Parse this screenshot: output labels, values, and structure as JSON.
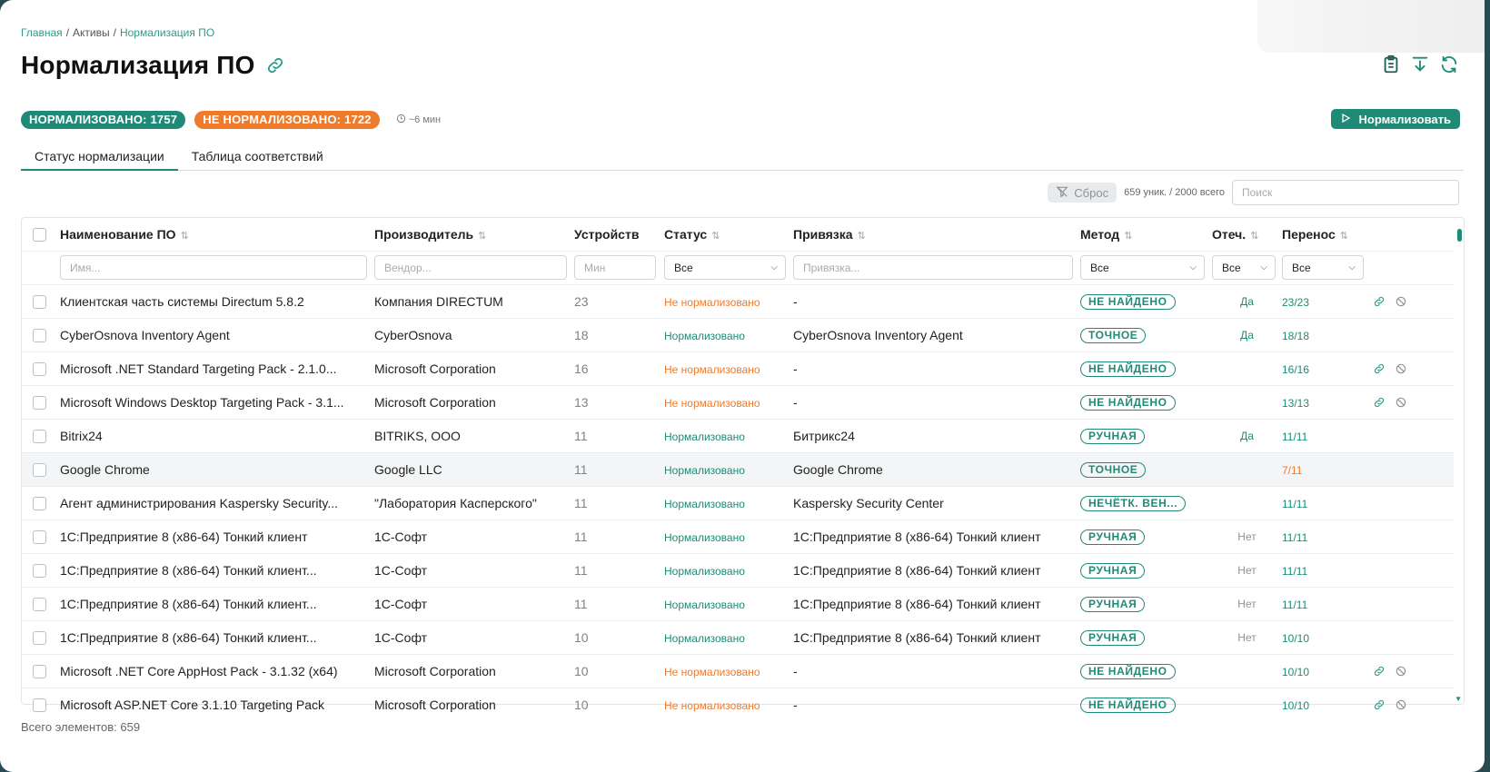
{
  "breadcrumb": {
    "items": [
      "Главная",
      "Активы",
      "Нормализация ПО"
    ],
    "separator": "/"
  },
  "page": {
    "title": "Нормализация ПО"
  },
  "summary": {
    "normalized": "НОРМАЛИЗОВАНО: 1757",
    "not_normalized": "НЕ НОРМАЛИЗОВАНО: 1722",
    "eta": "~6 мин"
  },
  "actions": {
    "normalize": "Нормализовать"
  },
  "tabs": [
    {
      "label": "Статус нормализации",
      "active": true
    },
    {
      "label": "Таблица соответствий",
      "active": false
    }
  ],
  "toolbar": {
    "reset": "Сброс",
    "counts": "659 уник. / 2000 всего",
    "search_placeholder": "Поиск"
  },
  "table": {
    "columns": [
      "Наименование ПО",
      "Производитель",
      "Устройств",
      "Статус",
      "Привязка",
      "Метод",
      "Отеч.",
      "Перенос"
    ],
    "filters": {
      "name_placeholder": "Имя...",
      "vendor_placeholder": "Вендор...",
      "min_placeholder": "Мин",
      "status_value": "Все",
      "binding_placeholder": "Привязка...",
      "method_value": "Все",
      "domestic_value": "Все",
      "transfer_value": "Все"
    },
    "rows": [
      {
        "name": "Клиентская часть системы Directum 5.8.2",
        "vendor": "Компания DIRECTUM",
        "devices": "23",
        "status": "Не нормализовано",
        "status_ok": false,
        "binding": "-",
        "method": "НЕ НАЙДЕНО",
        "domestic": "Да",
        "transfer": "23/23",
        "transfer_warn": false,
        "actions": true,
        "highlight": false
      },
      {
        "name": "CyberOsnova Inventory Agent",
        "vendor": "CyberOsnova",
        "devices": "18",
        "status": "Нормализовано",
        "status_ok": true,
        "binding": "CyberOsnova Inventory Agent",
        "method": "ТОЧНОЕ",
        "domestic": "Да",
        "transfer": "18/18",
        "transfer_warn": false,
        "actions": false,
        "highlight": false
      },
      {
        "name": "Microsoft .NET Standard Targeting Pack - 2.1.0...",
        "vendor": "Microsoft Corporation",
        "devices": "16",
        "status": "Не нормализовано",
        "status_ok": false,
        "binding": "-",
        "method": "НЕ НАЙДЕНО",
        "domestic": "",
        "transfer": "16/16",
        "transfer_warn": false,
        "actions": true,
        "highlight": false
      },
      {
        "name": "Microsoft Windows Desktop Targeting Pack - 3.1...",
        "vendor": "Microsoft Corporation",
        "devices": "13",
        "status": "Не нормализовано",
        "status_ok": false,
        "binding": "-",
        "method": "НЕ НАЙДЕНО",
        "domestic": "",
        "transfer": "13/13",
        "transfer_warn": false,
        "actions": true,
        "highlight": false
      },
      {
        "name": "Bitrix24",
        "vendor": "BITRIKS, OOO",
        "devices": "11",
        "status": "Нормализовано",
        "status_ok": true,
        "binding": "Битрикс24",
        "method": "РУЧНАЯ",
        "domestic": "Да",
        "transfer": "11/11",
        "transfer_warn": false,
        "actions": false,
        "highlight": false
      },
      {
        "name": "Google Chrome",
        "vendor": "Google LLC",
        "devices": "11",
        "status": "Нормализовано",
        "status_ok": true,
        "binding": "Google Chrome",
        "method": "ТОЧНОЕ",
        "domestic": "",
        "transfer": "7/11",
        "transfer_warn": true,
        "actions": false,
        "highlight": true
      },
      {
        "name": "Агент администрирования Kaspersky Security...",
        "vendor": "\"Лаборатория Касперского\"",
        "devices": "11",
        "status": "Нормализовано",
        "status_ok": true,
        "binding": "Kaspersky Security Center",
        "method": "НЕЧЁТК. ВЕН...",
        "domestic": "",
        "transfer": "11/11",
        "transfer_warn": false,
        "actions": false,
        "highlight": false
      },
      {
        "name": "1С:Предприятие 8 (x86-64) Тонкий клиент",
        "vendor": "1С-Софт",
        "devices": "11",
        "status": "Нормализовано",
        "status_ok": true,
        "binding": "1С:Предприятие 8 (x86-64) Тонкий клиент",
        "method": "РУЧНАЯ",
        "domestic": "Нет",
        "transfer": "11/11",
        "transfer_warn": false,
        "actions": false,
        "highlight": false
      },
      {
        "name": "1С:Предприятие 8 (x86-64) Тонкий клиент...",
        "vendor": "1С-Софт",
        "devices": "11",
        "status": "Нормализовано",
        "status_ok": true,
        "binding": "1С:Предприятие 8 (x86-64) Тонкий клиент",
        "method": "РУЧНАЯ",
        "domestic": "Нет",
        "transfer": "11/11",
        "transfer_warn": false,
        "actions": false,
        "highlight": false
      },
      {
        "name": "1С:Предприятие 8 (x86-64) Тонкий клиент...",
        "vendor": "1С-Софт",
        "devices": "11",
        "status": "Нормализовано",
        "status_ok": true,
        "binding": "1С:Предприятие 8 (x86-64) Тонкий клиент",
        "method": "РУЧНАЯ",
        "domestic": "Нет",
        "transfer": "11/11",
        "transfer_warn": false,
        "actions": false,
        "highlight": false
      },
      {
        "name": "1С:Предприятие 8 (x86-64) Тонкий клиент...",
        "vendor": "1С-Софт",
        "devices": "10",
        "status": "Нормализовано",
        "status_ok": true,
        "binding": "1С:Предприятие 8 (x86-64) Тонкий клиент",
        "method": "РУЧНАЯ",
        "domestic": "Нет",
        "transfer": "10/10",
        "transfer_warn": false,
        "actions": false,
        "highlight": false
      },
      {
        "name": "Microsoft .NET Core AppHost Pack - 3.1.32 (x64)",
        "vendor": "Microsoft Corporation",
        "devices": "10",
        "status": "Не нормализовано",
        "status_ok": false,
        "binding": "-",
        "method": "НЕ НАЙДЕНО",
        "domestic": "",
        "transfer": "10/10",
        "transfer_warn": false,
        "actions": true,
        "highlight": false
      },
      {
        "name": "Microsoft ASP.NET Core 3.1.10 Targeting Pack",
        "vendor": "Microsoft Corporation",
        "devices": "10",
        "status": "Не нормализовано",
        "status_ok": false,
        "binding": "-",
        "method": "НЕ НАЙДЕНО",
        "domestic": "",
        "transfer": "10/10",
        "transfer_warn": false,
        "actions": true,
        "highlight": false
      }
    ]
  },
  "footer": {
    "total": "Всего элементов: 659"
  },
  "colors": {
    "accent": "#1f8a76",
    "warning": "#ee7b2c",
    "muted": "#8a9398"
  },
  "icons": [
    "link-icon",
    "clipboard-icon",
    "download-icon",
    "refresh-icon",
    "clock-icon",
    "play-icon",
    "filter-off-icon",
    "chevron-down-icon",
    "block-icon",
    "sort-icon"
  ]
}
